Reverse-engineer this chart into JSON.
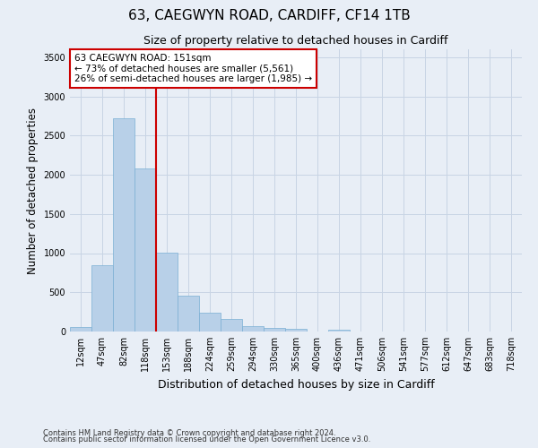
{
  "title1": "63, CAEGWYN ROAD, CARDIFF, CF14 1TB",
  "title2": "Size of property relative to detached houses in Cardiff",
  "xlabel": "Distribution of detached houses by size in Cardiff",
  "ylabel": "Number of detached properties",
  "categories": [
    "12sqm",
    "47sqm",
    "82sqm",
    "118sqm",
    "153sqm",
    "188sqm",
    "224sqm",
    "259sqm",
    "294sqm",
    "330sqm",
    "365sqm",
    "400sqm",
    "436sqm",
    "471sqm",
    "506sqm",
    "541sqm",
    "577sqm",
    "612sqm",
    "647sqm",
    "683sqm",
    "718sqm"
  ],
  "values": [
    55,
    850,
    2720,
    2075,
    1005,
    455,
    245,
    155,
    65,
    45,
    30,
    0,
    20,
    0,
    0,
    0,
    0,
    0,
    0,
    0,
    0
  ],
  "bar_color": "#b8d0e8",
  "bar_edge_color": "#7aafd4",
  "grid_color": "#c8d4e4",
  "bg_color": "#e8eef6",
  "vline_color": "#cc0000",
  "vline_index": 3.5,
  "annotation_text": "63 CAEGWYN ROAD: 151sqm\n← 73% of detached houses are smaller (5,561)\n26% of semi-detached houses are larger (1,985) →",
  "annotation_box_color": "#ffffff",
  "annotation_box_edge": "#cc0000",
  "ylim": [
    0,
    3600
  ],
  "yticks": [
    0,
    500,
    1000,
    1500,
    2000,
    2500,
    3000,
    3500
  ],
  "footer1": "Contains HM Land Registry data © Crown copyright and database right 2024.",
  "footer2": "Contains public sector information licensed under the Open Government Licence v3.0.",
  "title1_fontsize": 11,
  "title2_fontsize": 9,
  "tick_fontsize": 7,
  "ylabel_fontsize": 8.5,
  "xlabel_fontsize": 9,
  "annot_fontsize": 7.5,
  "footer_fontsize": 6
}
